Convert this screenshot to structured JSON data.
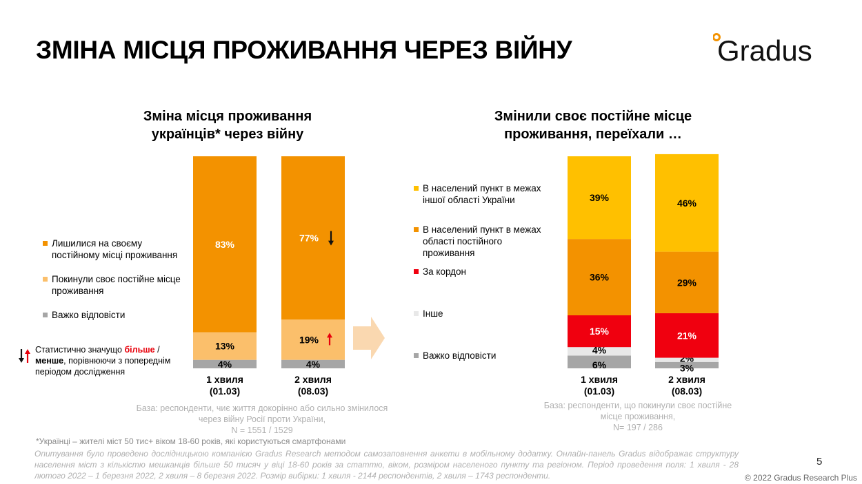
{
  "title": "ЗМІНА МІСЦЯ ПРОЖИВАННЯ ЧЕРЕЗ ВІЙНУ",
  "logo": {
    "text": "Gradus",
    "dot_color": "#F39200"
  },
  "colors": {
    "dark_orange": "#F39200",
    "light_orange": "#FBBF6B",
    "gray": "#A6A6A6",
    "yellow": "#FFC000",
    "red": "#F0000F",
    "light_gray": "#E8E8E8",
    "arrow": "#FAD8B0"
  },
  "chart_data": [
    {
      "type": "bar",
      "stacked": true,
      "title_line1": "Зміна місця проживання",
      "title_line2": "українців* через війну",
      "categories": [
        {
          "line1": "1 хвиля",
          "line2": "(01.03)"
        },
        {
          "line1": "2 хвиля",
          "line2": "(08.03)"
        }
      ],
      "series": [
        {
          "name": "Важко відповісти",
          "color": "#A6A6A6",
          "values": [
            4,
            4
          ],
          "labels": [
            "4%",
            "4%"
          ]
        },
        {
          "name": "Покинули своє постійне місце проживання",
          "color": "#FBBF6B",
          "values": [
            13,
            19
          ],
          "labels": [
            "13%",
            "19%"
          ],
          "label_color": "#000000"
        },
        {
          "name": "Лишилися на своєму постійному місці проживання",
          "color": "#F39200",
          "values": [
            83,
            77
          ],
          "labels": [
            "83%",
            "77%"
          ],
          "label_color": "#ffffff"
        }
      ],
      "legend": [
        {
          "line1": "Лишилися на своєму",
          "line2": "постійному місці проживання",
          "color": "#F39200"
        },
        {
          "line1": "Покинули своє постійне місце",
          "line2": "проживання",
          "color": "#FBBF6B"
        },
        {
          "line1": "Важко відповісти",
          "line2": "",
          "color": "#A6A6A6"
        }
      ],
      "base_note": {
        "line1": "База: респонденти, чиє життя докорінно або сильно змінилося",
        "line2": "через війну Росії проти України,",
        "line3": "N = 1551 / 1529"
      },
      "ylim": [
        0,
        100
      ]
    },
    {
      "type": "bar",
      "stacked": true,
      "title_line1": "Змінили своє постійне місце",
      "title_line2": "проживання, переїхали …",
      "categories": [
        {
          "line1": "1 хвиля",
          "line2": "(01.03)"
        },
        {
          "line1": "2 хвиля",
          "line2": "(08.03)"
        }
      ],
      "series": [
        {
          "name": "Важко відповісти",
          "color": "#A6A6A6",
          "values": [
            6,
            3
          ],
          "labels": [
            "6%",
            "3%"
          ]
        },
        {
          "name": "Інше",
          "color": "#E8E8E8",
          "values": [
            4,
            2
          ],
          "labels": [
            "4%",
            "2%"
          ]
        },
        {
          "name": "За кордон",
          "color": "#F0000F",
          "values": [
            15,
            21
          ],
          "labels": [
            "15%",
            "21%"
          ]
        },
        {
          "name": "В населений пункт в межах області постійного проживання",
          "color": "#F39200",
          "values": [
            36,
            29
          ],
          "labels": [
            "36%",
            "29%"
          ]
        },
        {
          "name": "В населений пункт в межах іншої області України",
          "color": "#FFC000",
          "values": [
            39,
            46
          ],
          "labels": [
            "39%",
            "46%"
          ]
        }
      ],
      "legend": [
        {
          "line1": "В населений пункт в межах",
          "line2": "іншої області України",
          "line3": "",
          "color": "#FFC000"
        },
        {
          "line1": "В населений пункт в межах",
          "line2": "області постійного",
          "line3": "проживання",
          "color": "#F39200"
        },
        {
          "line1": "За кордон",
          "line2": "",
          "line3": "",
          "color": "#F0000F"
        },
        {
          "line1": "Інше",
          "line2": "",
          "line3": "",
          "color": "#E8E8E8"
        },
        {
          "line1": "Важко відповісти",
          "line2": "",
          "line3": "",
          "color": "#A6A6A6"
        }
      ],
      "base_note": {
        "line1": "База: респонденти, що покинули своє постійне",
        "line2": "місце проживання,",
        "line3": "N= 197 / 286"
      },
      "ylim": [
        0,
        100
      ]
    }
  ],
  "significance_note": {
    "prefix": "Статистично значущо ",
    "more": "більше",
    "slash": " /",
    "less": "менше",
    "suffix_line2": ", порівнюючи з попереднім",
    "line3": "періодом дослідження"
  },
  "footnote": "*Українці – жителі міст 50 тис+ віком 18-60 років, які користуються смартфонами",
  "method_note": "Опитування було проведено дослідницькою компанією Gradus Research методом самозаповнення анкети в мобільному додатку. Онлайн-панель Gradus відображає структуру населення міст з кількістю мешканців більше 50 тисяч у віці 18-60 років за статтю, віком, розміром населеного пункту та регіоном. Період проведення поля: 1 хвиля - 28 лютого 2022 – 1 березня 2022, 2 хвиля – 8 березня 2022. Розмір вибірки: 1 хвиля - 2144 респондентів, 2 хвиля – 1743 респонденти.",
  "page_number": "5",
  "copyright": "© 2022 Gradus Research Plus"
}
